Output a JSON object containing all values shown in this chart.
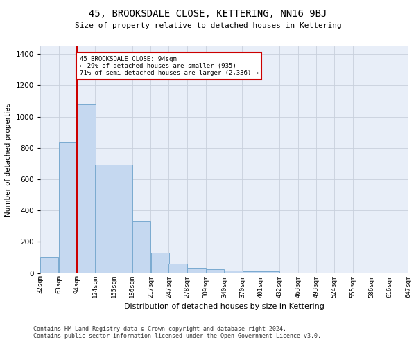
{
  "title": "45, BROOKSDALE CLOSE, KETTERING, NN16 9BJ",
  "subtitle": "Size of property relative to detached houses in Kettering",
  "xlabel": "Distribution of detached houses by size in Kettering",
  "ylabel": "Number of detached properties",
  "bar_color": "#c5d8f0",
  "bar_edge_color": "#7aaad0",
  "property_line_x": 94,
  "property_line_color": "#cc0000",
  "annotation_line1": "45 BROOKSDALE CLOSE: 94sqm",
  "annotation_line2": "← 29% of detached houses are smaller (935)",
  "annotation_line3": "71% of semi-detached houses are larger (2,336) →",
  "annotation_box_color": "#cc0000",
  "bins": [
    32,
    63,
    94,
    124,
    155,
    186,
    217,
    247,
    278,
    309,
    340,
    370,
    401,
    432,
    463,
    493,
    524,
    555,
    586,
    616,
    647
  ],
  "bin_labels": [
    "32sqm",
    "63sqm",
    "94sqm",
    "124sqm",
    "155sqm",
    "186sqm",
    "217sqm",
    "247sqm",
    "278sqm",
    "309sqm",
    "340sqm",
    "370sqm",
    "401sqm",
    "432sqm",
    "463sqm",
    "493sqm",
    "524sqm",
    "555sqm",
    "586sqm",
    "616sqm",
    "647sqm"
  ],
  "bar_heights": [
    100,
    840,
    1080,
    695,
    695,
    330,
    130,
    60,
    30,
    25,
    18,
    12,
    12,
    0,
    0,
    0,
    0,
    0,
    0,
    0
  ],
  "ylim": [
    0,
    1450
  ],
  "background_color": "#ffffff",
  "plot_bg_color": "#e8eef8",
  "grid_color": "#c8d0dc",
  "footnote1": "Contains HM Land Registry data © Crown copyright and database right 2024.",
  "footnote2": "Contains public sector information licensed under the Open Government Licence v3.0."
}
